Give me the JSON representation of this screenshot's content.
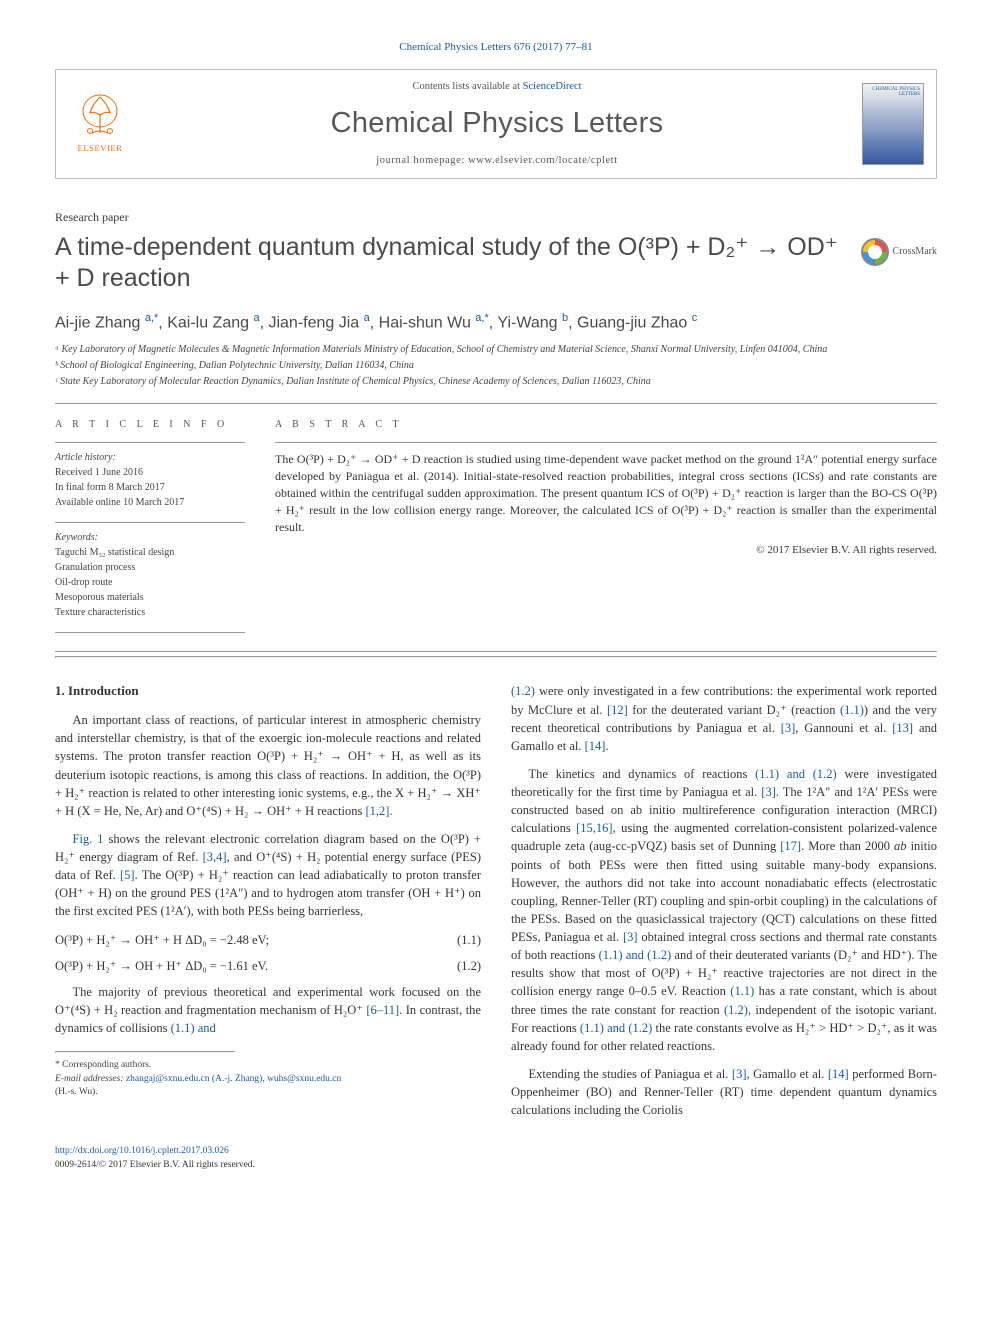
{
  "citation": "Chemical Physics Letters 676 (2017) 77–81",
  "header": {
    "contents_prefix": "Contents lists available at ",
    "contents_link": "ScienceDirect",
    "journal": "Chemical Physics Letters",
    "homepage_prefix": "journal homepage: ",
    "homepage": "www.elsevier.com/locate/cplett",
    "elsevier": "ELSEVIER",
    "cover_text": "CHEMICAL PHYSICS LETTERS"
  },
  "article_type": "Research paper",
  "title": "A time-dependent quantum dynamical study of the O(³P) + D₂⁺ → OD⁺ + D reaction",
  "crossmark": "CrossMark",
  "authors_html": "Ai-jie Zhang <sup class='aff'>a,</sup><sup>*</sup>, Kai-lu Zang <sup class='aff'>a</sup>, Jian-feng Jia <sup class='aff'>a</sup>, Hai-shun Wu <sup class='aff'>a,</sup><sup>*</sup>, Yi-Wang <sup class='aff'>b</sup>, Guang-jiu Zhao <sup class='aff'>c</sup>",
  "affiliations": [
    "ᵃ Key Laboratory of Magnetic Molecules & Magnetic Information Materials Ministry of Education, School of Chemistry and Material Science, Shanxi Normal University, Linfen 041004, China",
    "ᵇ School of Biological Engineering, Dalian Polytechnic University, Dalian 116034, China",
    "ᶜ State Key Laboratory of Molecular Reaction Dynamics, Dalian Institute of Chemical Physics, Chinese Academy of Sciences, Dalian 116023, China"
  ],
  "info": {
    "label": "A R T I C L E   I N F O",
    "history_label": "Article history:",
    "history": [
      "Received 1 June 2016",
      "In final form 8 March 2017",
      "Available online 10 March 2017"
    ],
    "keywords_label": "Keywords:",
    "keywords": [
      "Taguchi M₃₂ statistical design",
      "Granulation process",
      "Oil-drop route",
      "Mesoporous materials",
      "Texture characteristics"
    ]
  },
  "abstract": {
    "label": "A B S T R A C T",
    "text": "The O(³P) + D₂⁺ → OD⁺ + D reaction is studied using time-dependent wave packet method on the ground 1²A″ potential energy surface developed by Paniagua et al. (2014). Initial-state-resolved reaction probabilities, integral cross sections (ICSs) and rate constants are obtained within the centrifugal sudden approximation. The present quantum ICS of O(³P) + D₂⁺ reaction is larger than the BO-CS O(³P) + H₂⁺ result in the low collision energy range. Moreover, the calculated ICS of O(³P) + D₂⁺ reaction is smaller than the experimental result.",
    "copyright": "© 2017 Elsevier B.V. All rights reserved."
  },
  "body": {
    "heading": "1. Introduction",
    "left": [
      "An important class of reactions, of particular interest in atmospheric chemistry and interstellar chemistry, is that of the exoergic ion-molecule reactions and related systems. The proton transfer reaction O(³P) + H₂⁺ → OH⁺ + H, as well as its deuterium isotopic reactions, is among this class of reactions. In addition, the O(³P) + H₂⁺ reaction is related to other interesting ionic systems, e.g., the X + H₂⁺ → XH⁺ + H (X = He, Ne, Ar) and O⁺(⁴S) + H₂ → OH⁺ + H reactions <span class='link'>[1,2]</span>.",
      "<span class='link'>Fig. 1</span> shows the relevant electronic correlation diagram based on the O(³P) + H₂⁺ energy diagram of Ref. <span class='link'>[3,4]</span>, and O⁺(⁴S) + H₂ potential energy surface (PES) data of Ref. <span class='link'>[5]</span>. The O(³P) + H₂⁺ reaction can lead adiabatically to proton transfer (OH⁺ + H) on the ground PES (1²A″) and to hydrogen atom transfer (OH + H⁺) on the first excited PES (1²A′), with both PESs being barrierless,"
    ],
    "eqns": [
      {
        "lhs": "O(³P) + H₂⁺ → OH⁺ + H    ΔD₀ = −2.48 eV;",
        "num": "(1.1)"
      },
      {
        "lhs": "O(³P) + H₂⁺ → OH + H⁺    ΔD₀ = −1.61 eV.",
        "num": "(1.2)"
      }
    ],
    "left2": [
      "The majority of previous theoretical and experimental work focused on the O⁺(⁴S) + H₂ reaction and fragmentation mechanism of H₂O⁺ <span class='link'>[6–11]</span>. In contrast, the dynamics of collisions <span class='link'>(1.1) and</span>"
    ],
    "right": [
      "<span class='link'>(1.2)</span> were only investigated in a few contributions: the experimental work reported by McClure et al. <span class='link'>[12]</span> for the deuterated variant D₂⁺ (reaction <span class='link'>(1.1)</span>) and the very recent theoretical contributions by Paniagua et al. <span class='link'>[3]</span>, Gannouni et al. <span class='link'>[13]</span> and Gamallo et al. <span class='link'>[14]</span>.",
      "The kinetics and dynamics of reactions <span class='link'>(1.1) and (1.2)</span> were investigated theoretically for the first time by Paniagua et al. <span class='link'>[3]</span>. The 1²A″ and 1²A′ PESs were constructed based on ab initio multireference configuration interaction (MRCI) calculations <span class='link'>[15,16]</span>, using the augmented correlation-consistent polarized-valence quadruple zeta (aug-cc-pVQZ) basis set of Dunning <span class='link'>[17]</span>. More than 2000 <i>ab</i> initio points of both PESs were then fitted using suitable many-body expansions. However, the authors did not take into account nonadiabatic effects (electrostatic coupling, Renner-Teller (RT) coupling and spin-orbit coupling) in the calculations of the PESs. Based on the quasiclassical trajectory (QCT) calculations on these fitted PESs, Paniagua et al. <span class='link'>[3]</span> obtained integral cross sections and thermal rate constants of both reactions <span class='link'>(1.1) and (1.2)</span> and of their deuterated variants (D₂⁺ and HD⁺). The results show that most of O(³P) + H₂⁺ reactive trajectories are not direct in the collision energy range 0–0.5 eV. Reaction <span class='link'>(1.1)</span> has a rate constant, which is about three times the rate constant for reaction <span class='link'>(1.2)</span>, independent of the isotopic variant. For reactions <span class='link'>(1.1) and (1.2)</span> the rate constants evolve as H₂⁺ > HD⁺ > D₂⁺, as it was already found for other related reactions.",
      "Extending the studies of Paniagua et al. <span class='link'>[3]</span>, Gamallo et al. <span class='link'>[14]</span> performed Born-Oppenheimer (BO) and Renner-Teller (RT) time dependent quantum dynamics calculations including the Coriolis"
    ]
  },
  "footnotes": {
    "corr": "* Corresponding authors.",
    "email_label": "E-mail addresses:",
    "emails": "zhangaj@sxnu.edu.cn (A.-j. Zhang), wuhs@sxnu.edu.cn",
    "email_tail": "(H.-s. Wu)."
  },
  "doi": {
    "url": "http://dx.doi.org/10.1016/j.cplett.2017.03.026",
    "issn": "0009-2614/© 2017 Elsevier B.V. All rights reserved."
  },
  "colors": {
    "link": "#1a5aa8",
    "elsevier_orange": "#ff6a00",
    "text": "#353535",
    "rule": "#9a9a9a"
  }
}
